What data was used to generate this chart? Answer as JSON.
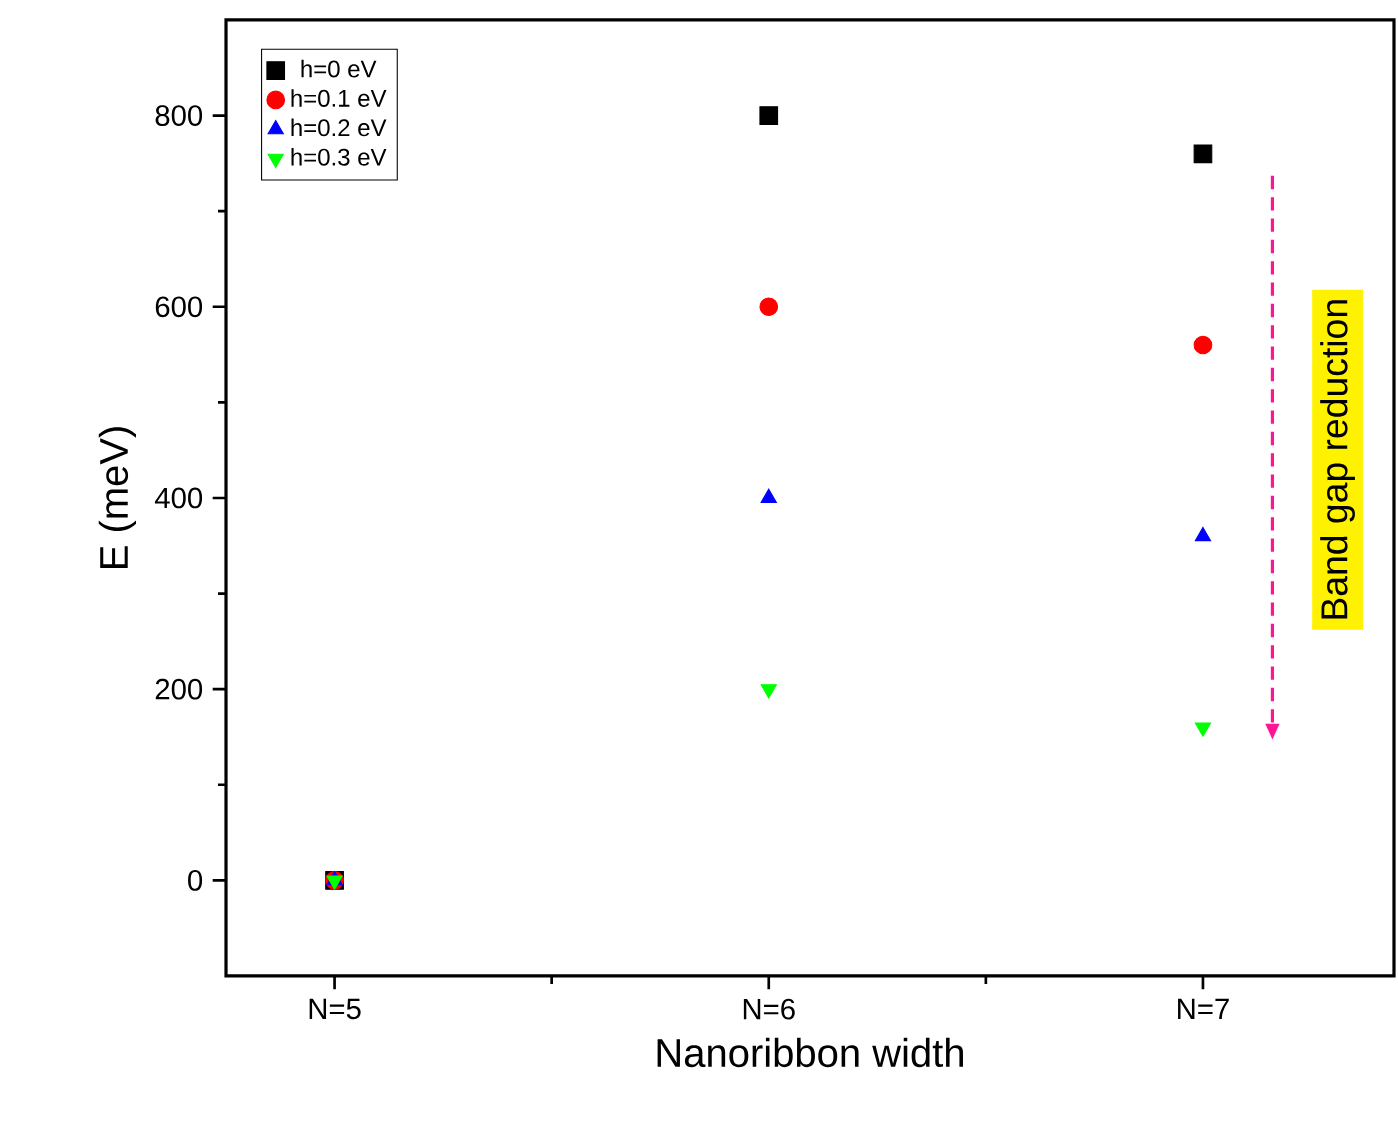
{
  "chart_data": {
    "type": "scatter",
    "xlabel": "Nanoribbon width",
    "ylabel": "E (meV)",
    "categories": [
      "N=5",
      "N=6",
      "N=7"
    ],
    "series": [
      {
        "name": "h=0 eV",
        "color": "#000000",
        "marker": "square",
        "values": [
          0,
          800,
          760
        ]
      },
      {
        "name": "h=0.1 eV",
        "color": "#ff0000",
        "marker": "circle",
        "values": [
          0,
          600,
          560
        ]
      },
      {
        "name": "h=0.2 eV",
        "color": "#0000ff",
        "marker": "triangle",
        "values": [
          0,
          400,
          360
        ]
      },
      {
        "name": "h=0.3 eV",
        "color": "#00ff00",
        "marker": "triangle down",
        "values": [
          0,
          200,
          160
        ]
      }
    ],
    "ylim": [
      -100,
      900
    ],
    "yticks": [
      0,
      200,
      400,
      600,
      800
    ],
    "grid": false,
    "legend": "top left",
    "annotations": [
      "Band gap reduction"
    ]
  }
}
